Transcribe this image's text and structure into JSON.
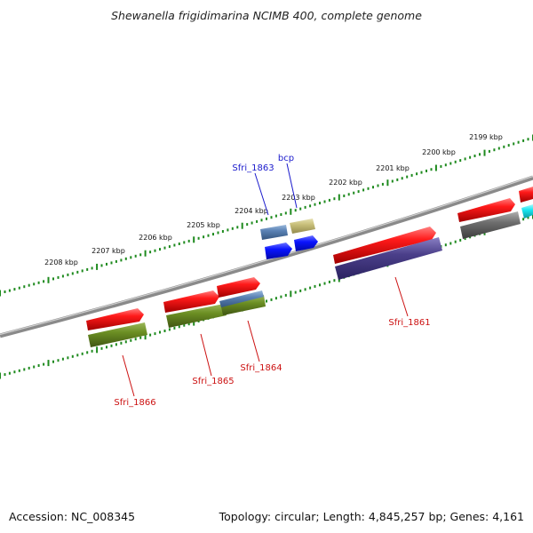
{
  "title": "Shewanella frigidimarina NCIMB 400, complete genome",
  "footer": {
    "accession": "Accession: NC_008345",
    "summary": "Topology: circular; Length: 4,845,257 bp; Genes: 4,161"
  },
  "scale": {
    "tick_labels": [
      "2199 kbp",
      "2200 kbp",
      "2201 kbp",
      "2202 kbp",
      "2203 kbp",
      "2204 kbp",
      "2205 kbp",
      "2206 kbp",
      "2207 kbp",
      "2208 kbp"
    ]
  },
  "colors": {
    "backbone": "#7a7a7a",
    "tick": "#1e8a1e",
    "forward_cds": "#ff1a1a",
    "label_red": "#cc1111",
    "label_blue": "#1a1acc",
    "olive": "#6b8e23",
    "navy": "#4b3f8a",
    "steel": "#5a82b4",
    "khaki": "#c8bf7a",
    "blue": "#0a14ff",
    "gray": "#6e6e6e",
    "cyan": "#19e6f0"
  },
  "genes": [
    {
      "label": "Sfri_1866",
      "color": "label_red"
    },
    {
      "label": "Sfri_1865",
      "color": "label_red"
    },
    {
      "label": "Sfri_1864",
      "color": "label_red"
    },
    {
      "label": "Sfri_1861",
      "color": "label_red"
    },
    {
      "label": "Sfri_1863",
      "color": "label_blue"
    },
    {
      "label": "bcp",
      "color": "label_blue"
    }
  ]
}
